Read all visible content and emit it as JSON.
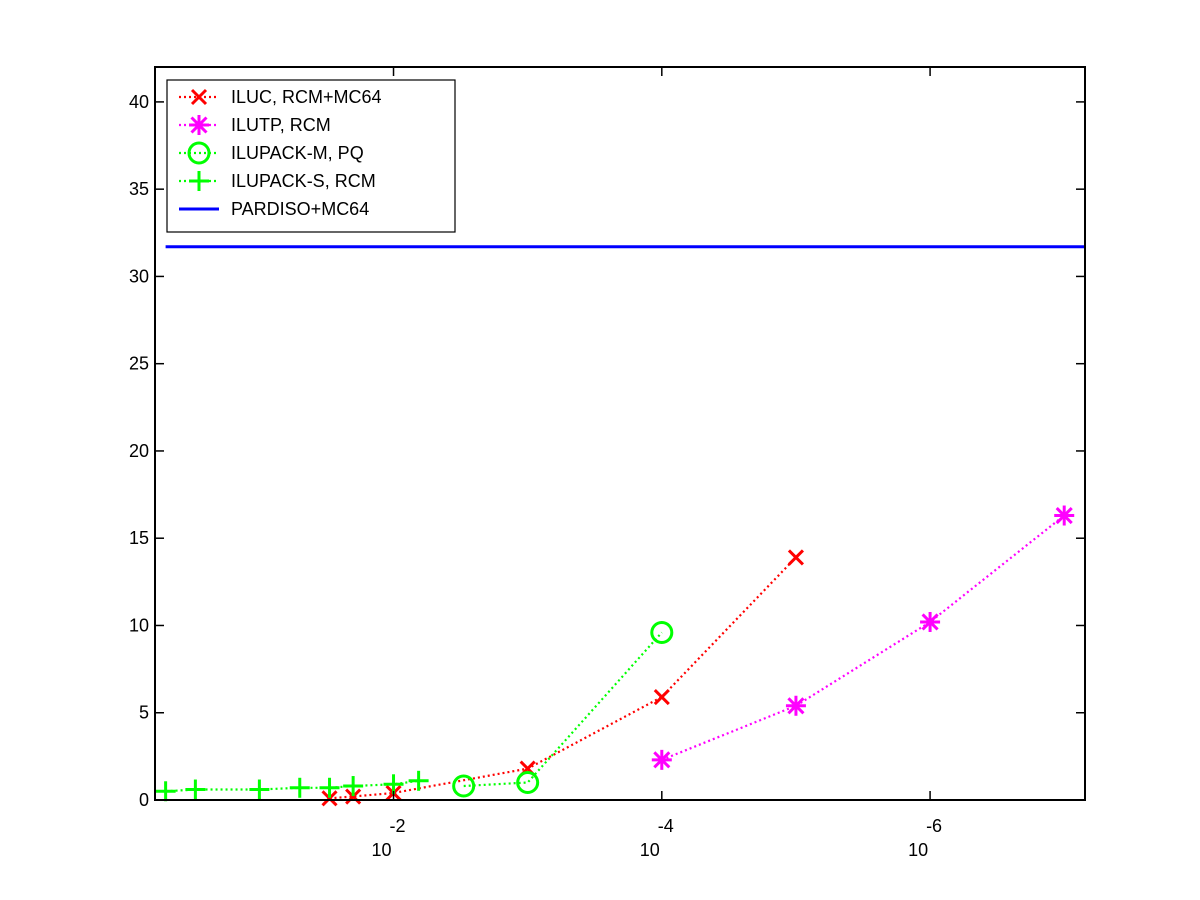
{
  "chart_data": {
    "type": "line",
    "x_scale": "log",
    "x_reversed": true,
    "xlim": [
      0.6,
      7e-08
    ],
    "ylim": [
      0,
      42
    ],
    "x_ticks": [
      {
        "value": 0.01,
        "base": "10",
        "exponent": "-2"
      },
      {
        "value": 0.0001,
        "base": "10",
        "exponent": "-4"
      },
      {
        "value": 1e-06,
        "base": "10",
        "exponent": "-6"
      }
    ],
    "y_ticks": [
      0,
      5,
      10,
      15,
      20,
      25,
      30,
      35,
      40
    ],
    "grid": false,
    "legend_position": "top-left",
    "series": [
      {
        "name": "ILUC, RCM+MC64",
        "color": "#ff0000",
        "line": "dotted",
        "marker": "x",
        "x": [
          0.03,
          0.02,
          0.01,
          0.001,
          0.0001,
          1e-05
        ],
        "y": [
          0.1,
          0.2,
          0.4,
          1.8,
          5.9,
          13.9
        ]
      },
      {
        "name": "ILUTP, RCM",
        "color": "#ff00ff",
        "line": "dotted",
        "marker": "asterisk",
        "x": [
          0.0001,
          1e-05,
          1e-06,
          1e-07
        ],
        "y": [
          2.3,
          5.4,
          10.2,
          16.3
        ]
      },
      {
        "name": "ILUPACK-M, PQ",
        "color": "#00ff00",
        "line": "dotted",
        "marker": "circle",
        "x": [
          0.003,
          0.001,
          0.0001
        ],
        "y": [
          0.8,
          1.0,
          9.6
        ]
      },
      {
        "name": "ILUPACK-S, RCM",
        "color": "#00ff00",
        "line": "dotted",
        "marker": "plus",
        "x": [
          0.5,
          0.3,
          0.1,
          0.05,
          0.03,
          0.02,
          0.01,
          0.0065
        ],
        "y": [
          0.5,
          0.6,
          0.6,
          0.7,
          0.7,
          0.8,
          0.9,
          1.1
        ]
      },
      {
        "name": "PARDISO+MC64",
        "color": "#0000ff",
        "line": "solid",
        "marker": "none",
        "x": [
          0.5,
          7e-08
        ],
        "y": [
          31.7,
          31.7
        ]
      }
    ]
  }
}
